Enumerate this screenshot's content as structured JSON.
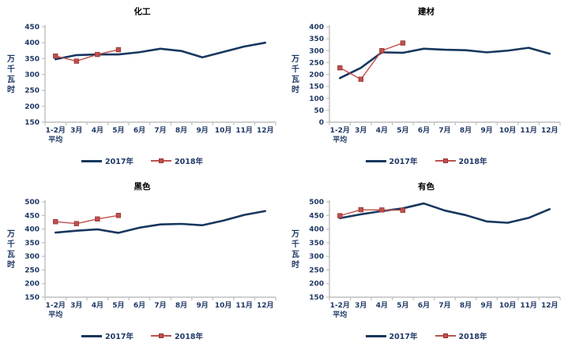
{
  "style": {
    "background": "#FFFFFF",
    "axis_color": "#BFBFBF",
    "label_text_color": "#1F3864",
    "title_text_color": "#000000",
    "series_2017_color": "#17375E",
    "series_2018_color": "#C0504D",
    "marker_border_color": "#943634"
  },
  "chart_data": [
    {
      "id": "chemical",
      "title": "化工",
      "type": "line",
      "ylabel": "万千瓦时",
      "ylim": [
        150,
        450
      ],
      "ytick_step": 50,
      "grid": false,
      "legend_position": "bottom",
      "categories": [
        "1-2月",
        "3月",
        "4月",
        "5月",
        "6月",
        "7月",
        "8月",
        "9月",
        "10月",
        "11月",
        "12月"
      ],
      "first_category_line2": "平均",
      "series": [
        {
          "name": "2017年",
          "color": "#17375E",
          "marker": "none",
          "values": [
            348,
            361,
            363,
            363,
            370,
            381,
            374,
            354,
            371,
            388,
            400
          ]
        },
        {
          "name": "2018年",
          "color": "#C0504D",
          "marker": "square",
          "values": [
            358,
            342,
            363,
            378
          ]
        }
      ]
    },
    {
      "id": "building-materials",
      "title": "建材",
      "type": "line",
      "ylabel": "万千瓦时",
      "ylim": [
        0,
        400
      ],
      "ytick_step": 50,
      "grid": false,
      "legend_position": "bottom",
      "categories": [
        "1-2月",
        "3月",
        "4月",
        "5月",
        "6月",
        "7月",
        "8月",
        "9月",
        "10月",
        "11月",
        "12月"
      ],
      "first_category_line2": "平均",
      "series": [
        {
          "name": "2017年",
          "color": "#17375E",
          "marker": "none",
          "values": [
            185,
            228,
            293,
            291,
            308,
            304,
            302,
            293,
            300,
            312,
            287
          ]
        },
        {
          "name": "2018年",
          "color": "#C0504D",
          "marker": "square",
          "values": [
            228,
            180,
            300,
            332
          ]
        }
      ]
    },
    {
      "id": "ferrous",
      "title": "黑色",
      "type": "line",
      "ylabel": "万千瓦时",
      "ylim": [
        150,
        500
      ],
      "ytick_step": 50,
      "grid": false,
      "legend_position": "bottom",
      "categories": [
        "1-2月",
        "3月",
        "4月",
        "5月",
        "6月",
        "7月",
        "8月",
        "9月",
        "10月",
        "11月",
        "12月"
      ],
      "first_category_line2": "平均",
      "series": [
        {
          "name": "2017年",
          "color": "#17375E",
          "marker": "none",
          "values": [
            387,
            394,
            399,
            386,
            405,
            417,
            419,
            414,
            431,
            452,
            466
          ]
        },
        {
          "name": "2018年",
          "color": "#C0504D",
          "marker": "square",
          "values": [
            427,
            420,
            437,
            450
          ]
        }
      ]
    },
    {
      "id": "non-ferrous",
      "title": "有色",
      "type": "line",
      "ylabel": "万千瓦时",
      "ylim": [
        150,
        500
      ],
      "ytick_step": 50,
      "grid": false,
      "legend_position": "bottom",
      "categories": [
        "1-2月",
        "3月",
        "4月",
        "5月",
        "6月",
        "7月",
        "8月",
        "9月",
        "10月",
        "11月",
        "12月"
      ],
      "first_category_line2": "平均",
      "series": [
        {
          "name": "2017年",
          "color": "#17375E",
          "marker": "none",
          "values": [
            440,
            454,
            466,
            476,
            494,
            468,
            451,
            428,
            423,
            441,
            473
          ]
        },
        {
          "name": "2018年",
          "color": "#C0504D",
          "marker": "square",
          "values": [
            449,
            471,
            470,
            469
          ]
        }
      ]
    }
  ]
}
